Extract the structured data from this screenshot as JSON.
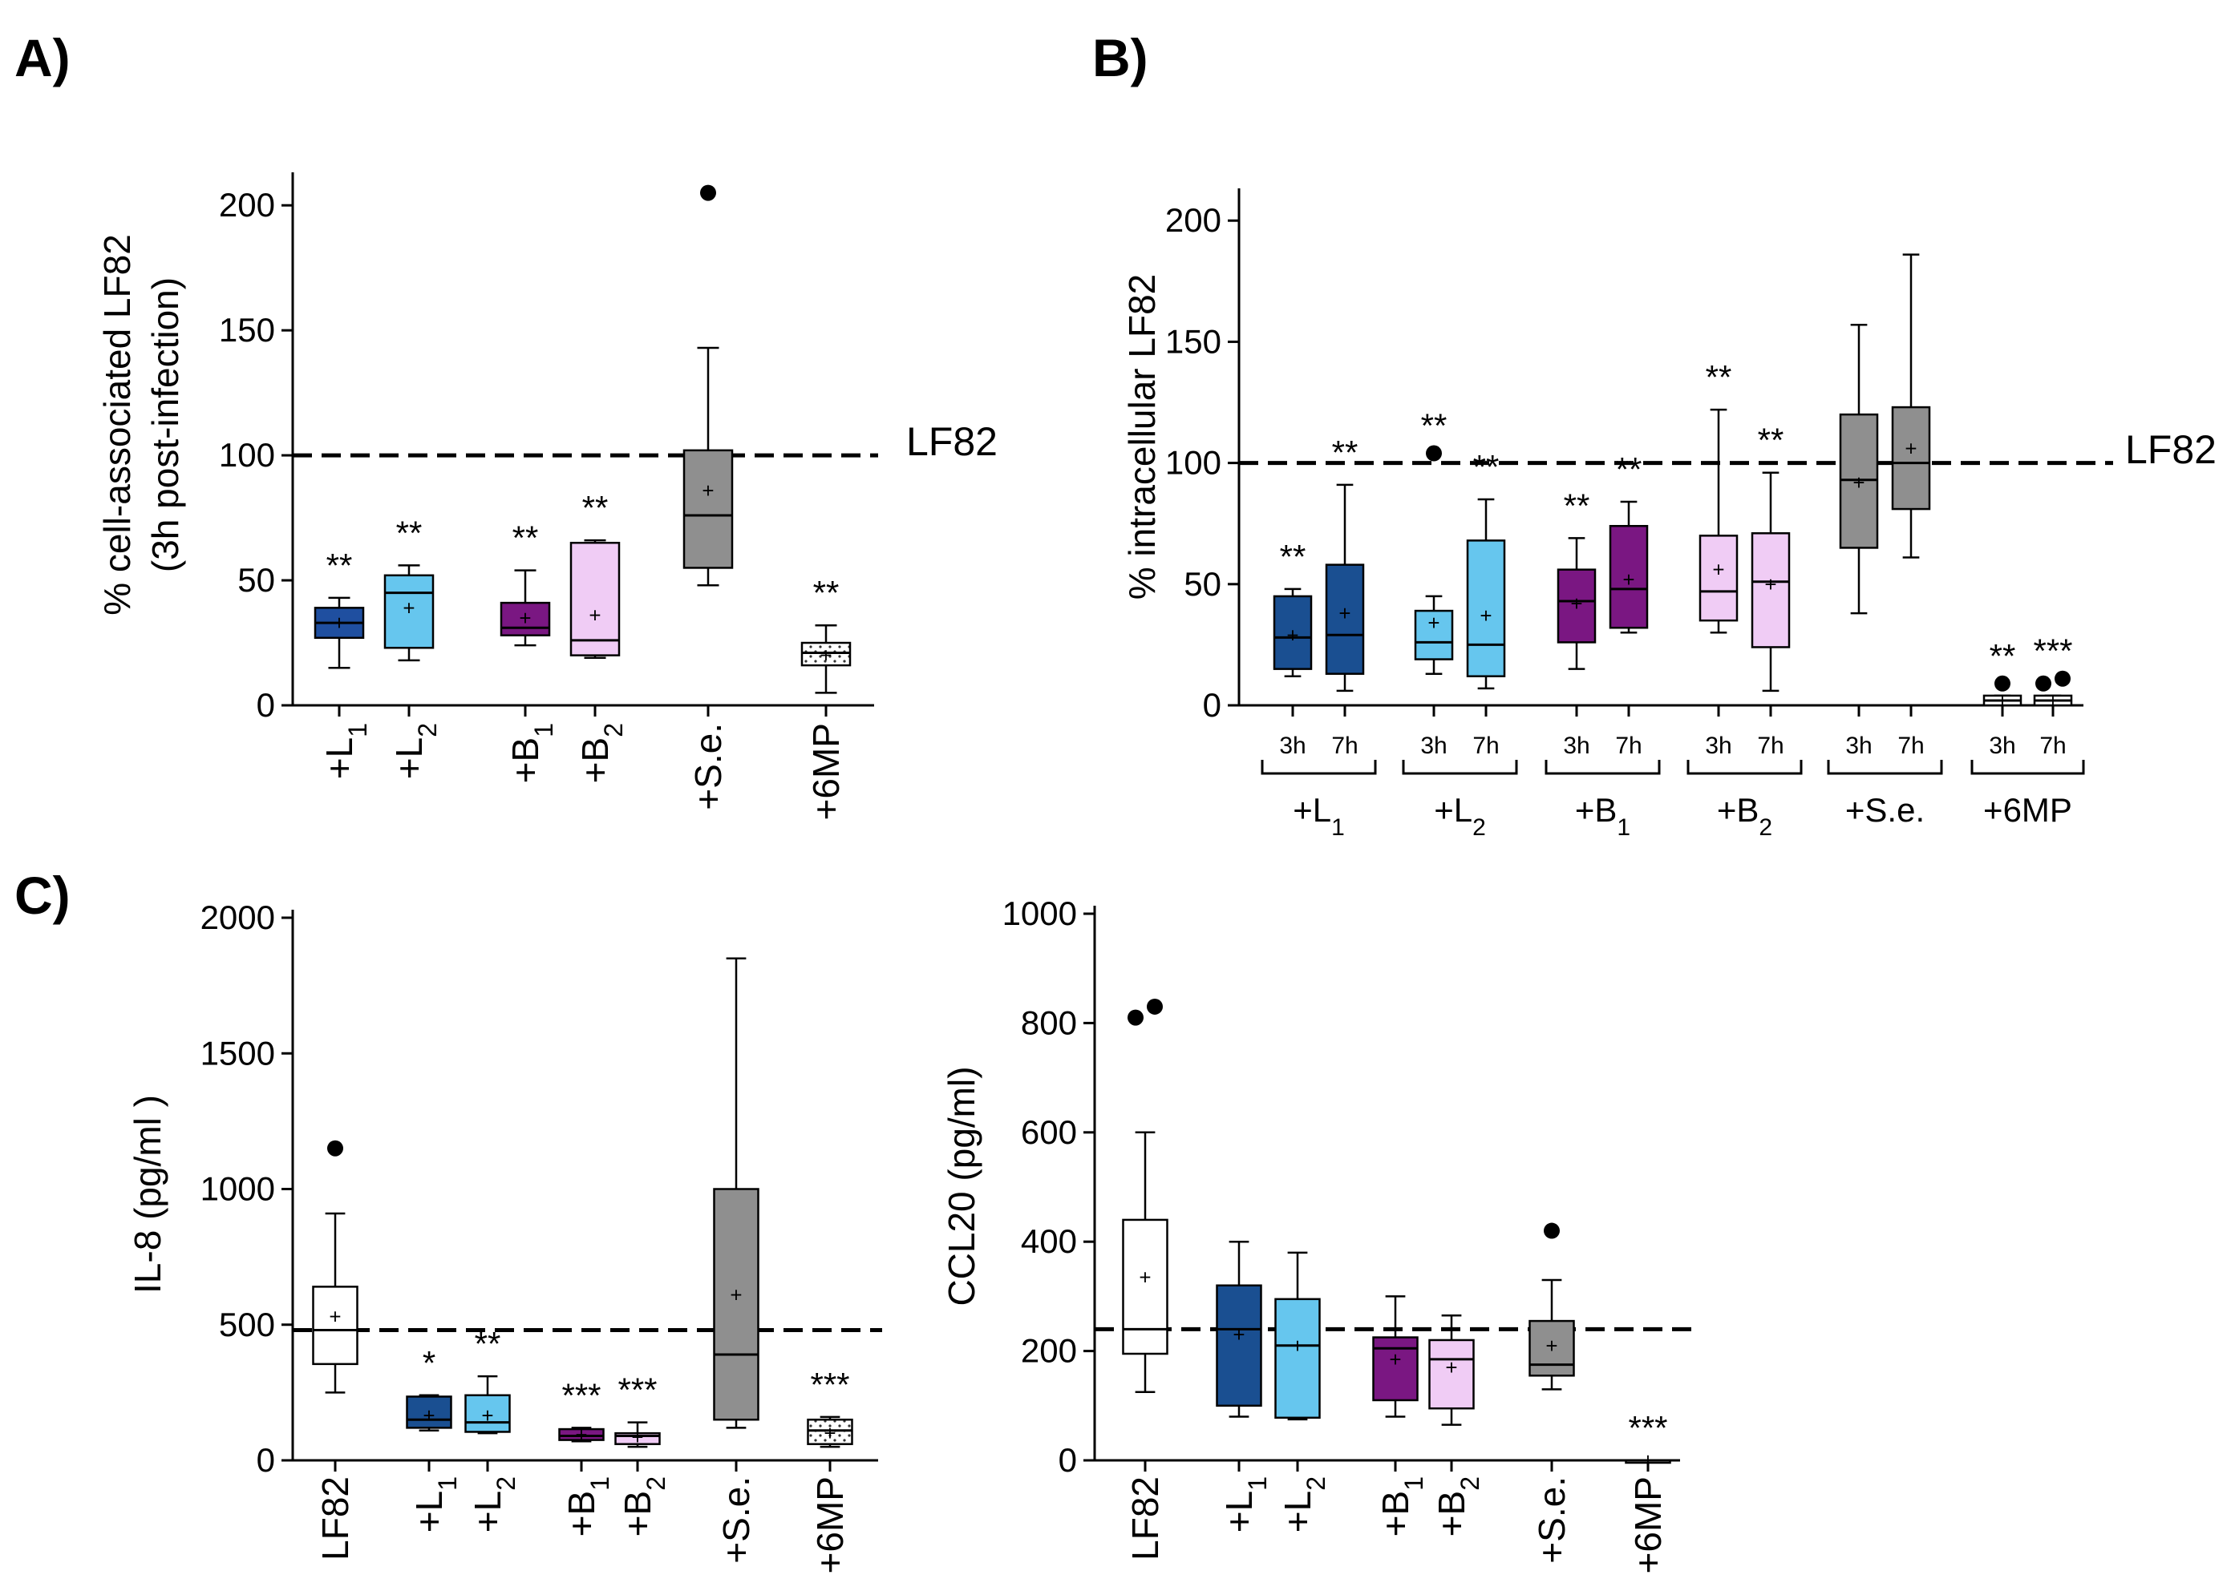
{
  "chart_data": [
    {
      "id": "A",
      "type": "box",
      "panel_label": "A)",
      "ylabel": "% cell-associated LF82",
      "ylabel2": "(3h post-infection)",
      "ylim": [
        0,
        210
      ],
      "yticks": [
        0,
        50,
        100,
        150,
        200
      ],
      "reference_line": {
        "value": 100,
        "label": "LF82"
      },
      "categories": [
        {
          "label": "+L",
          "sub": "1"
        },
        {
          "label": "+L",
          "sub": "2"
        },
        {
          "label": "+B",
          "sub": "1"
        },
        {
          "label": "+B",
          "sub": "2"
        },
        {
          "label": "+S.e.",
          "sub": ""
        },
        {
          "label": "+6MP",
          "sub": ""
        }
      ],
      "boxes": [
        {
          "min": 15,
          "q1": 27,
          "median": 33,
          "q3": 39,
          "max": 43,
          "mean": 33,
          "color": "#1f4fa0",
          "sig": "**"
        },
        {
          "min": 18,
          "q1": 23,
          "median": 45,
          "q3": 52,
          "max": 56,
          "mean": 39,
          "color": "#66c6ee",
          "sig": "**"
        },
        {
          "min": 24,
          "q1": 28,
          "median": 31,
          "q3": 41,
          "max": 54,
          "mean": 35,
          "color": "#7a1782",
          "sig": "**"
        },
        {
          "min": 19,
          "q1": 20,
          "median": 26,
          "q3": 65,
          "max": 66,
          "mean": 36,
          "color": "#f0ccf5",
          "sig": "**"
        },
        {
          "min": 48,
          "q1": 55,
          "median": 76,
          "q3": 102,
          "max": 143,
          "mean": 86,
          "color": "#8f8f8f",
          "sig": "",
          "outliers": [
            205
          ]
        },
        {
          "min": 5,
          "q1": 16,
          "median": 21,
          "q3": 25,
          "max": 32,
          "mean": 20,
          "color": "#ffffff",
          "hatch": true,
          "sig": "**"
        }
      ]
    },
    {
      "id": "B",
      "type": "box",
      "panel_label": "B)",
      "ylabel": "% intracellular LF82",
      "ylim": [
        0,
        210
      ],
      "yticks": [
        0,
        50,
        100,
        150,
        200
      ],
      "reference_line": {
        "value": 100,
        "label": "LF82"
      },
      "timepoints": [
        "3h",
        "7h"
      ],
      "groups": [
        {
          "label": "+L",
          "sub": "1"
        },
        {
          "label": "+L",
          "sub": "2"
        },
        {
          "label": "+B",
          "sub": "1"
        },
        {
          "label": "+B",
          "sub": "2"
        },
        {
          "label": "+S.e.",
          "sub": ""
        },
        {
          "label": "+6MP",
          "sub": ""
        }
      ],
      "boxes": [
        {
          "min": 12,
          "q1": 15,
          "median": 28,
          "q3": 45,
          "max": 48,
          "mean": 29,
          "color": "#1a4f91",
          "sig": "**"
        },
        {
          "min": 6,
          "q1": 13,
          "median": 29,
          "q3": 58,
          "max": 91,
          "mean": 38,
          "color": "#1a4f91",
          "sig": "**"
        },
        {
          "min": 13,
          "q1": 19,
          "median": 26,
          "q3": 39,
          "max": 45,
          "mean": 34,
          "color": "#66c6ee",
          "sig": "**",
          "outliers": [
            104
          ]
        },
        {
          "min": 7,
          "q1": 12,
          "median": 25,
          "q3": 68,
          "max": 85,
          "mean": 37,
          "color": "#66c6ee",
          "sig": "**"
        },
        {
          "min": 15,
          "q1": 26,
          "median": 43,
          "q3": 56,
          "max": 69,
          "mean": 42,
          "color": "#7a1782",
          "sig": "**"
        },
        {
          "min": 30,
          "q1": 32,
          "median": 48,
          "q3": 74,
          "max": 84,
          "mean": 52,
          "color": "#7a1782",
          "sig": "**"
        },
        {
          "min": 30,
          "q1": 35,
          "median": 47,
          "q3": 70,
          "max": 122,
          "mean": 56,
          "color": "#f0ccf5",
          "sig": "**"
        },
        {
          "min": 6,
          "q1": 24,
          "median": 51,
          "q3": 71,
          "max": 96,
          "mean": 50,
          "color": "#f0ccf5",
          "sig": "**"
        },
        {
          "min": 38,
          "q1": 65,
          "median": 93,
          "q3": 120,
          "max": 157,
          "mean": 92,
          "color": "#8f8f8f",
          "sig": ""
        },
        {
          "min": 61,
          "q1": 81,
          "median": 100,
          "q3": 123,
          "max": 186,
          "mean": 106,
          "color": "#8f8f8f",
          "sig": ""
        },
        {
          "min": 0,
          "q1": 0,
          "median": 2,
          "q3": 4,
          "max": 4,
          "mean": 2,
          "color": "#ffffff",
          "sig": "**",
          "outliers": [
            9
          ]
        },
        {
          "min": 0,
          "q1": 0,
          "median": 2,
          "q3": 4,
          "max": 4,
          "mean": 2,
          "color": "#ffffff",
          "sig": "***",
          "outliers": [
            9,
            11
          ]
        }
      ]
    },
    {
      "id": "C1",
      "type": "box",
      "panel_label": "C)",
      "ylabel": "IL-8 (pg/ml )",
      "ylim": [
        0,
        2000
      ],
      "yticks": [
        0,
        500,
        1000,
        1500,
        2000
      ],
      "reference_line": {
        "value": 480,
        "label": ""
      },
      "categories": [
        {
          "label": "LF82",
          "sub": ""
        },
        {
          "label": "+L",
          "sub": "1"
        },
        {
          "label": "+L",
          "sub": "2"
        },
        {
          "label": "+B",
          "sub": "1"
        },
        {
          "label": "+B",
          "sub": "2"
        },
        {
          "label": "+S.e.",
          "sub": ""
        },
        {
          "label": "+6MP",
          "sub": ""
        }
      ],
      "boxes": [
        {
          "min": 250,
          "q1": 355,
          "median": 480,
          "q3": 640,
          "max": 910,
          "mean": 530,
          "color": "#ffffff",
          "sig": "",
          "outliers": [
            1150
          ]
        },
        {
          "min": 110,
          "q1": 120,
          "median": 150,
          "q3": 235,
          "max": 240,
          "mean": 165,
          "color": "#1a4f91",
          "sig": "*"
        },
        {
          "min": 100,
          "q1": 105,
          "median": 140,
          "q3": 240,
          "max": 310,
          "mean": 165,
          "color": "#66c6ee",
          "sig": "**"
        },
        {
          "min": 70,
          "q1": 75,
          "median": 90,
          "q3": 115,
          "max": 120,
          "mean": 95,
          "color": "#7a1782",
          "sig": "***"
        },
        {
          "min": 50,
          "q1": 60,
          "median": 90,
          "q3": 100,
          "max": 140,
          "mean": 85,
          "color": "#f0ccf5",
          "sig": "***"
        },
        {
          "min": 120,
          "q1": 150,
          "median": 390,
          "q3": 1000,
          "max": 1850,
          "mean": 610,
          "color": "#8f8f8f",
          "sig": ""
        },
        {
          "min": 50,
          "q1": 60,
          "median": 110,
          "q3": 150,
          "max": 160,
          "mean": 100,
          "color": "#ffffff",
          "hatch": true,
          "sig": "***"
        }
      ]
    },
    {
      "id": "C2",
      "type": "box",
      "panel_label": "",
      "ylabel": "CCL20 (pg/ml)",
      "ylim": [
        0,
        1000
      ],
      "yticks": [
        0,
        200,
        400,
        600,
        800,
        1000
      ],
      "reference_line": {
        "value": 240,
        "label": ""
      },
      "categories": [
        {
          "label": "LF82",
          "sub": ""
        },
        {
          "label": "+L",
          "sub": "1"
        },
        {
          "label": "+L",
          "sub": "2"
        },
        {
          "label": "+B",
          "sub": "1"
        },
        {
          "label": "+B",
          "sub": "2"
        },
        {
          "label": "+S.e.",
          "sub": ""
        },
        {
          "label": "+6MP",
          "sub": ""
        }
      ],
      "boxes": [
        {
          "min": 125,
          "q1": 195,
          "median": 240,
          "q3": 440,
          "max": 600,
          "mean": 335,
          "color": "#ffffff",
          "sig": "",
          "outliers": [
            810,
            830
          ]
        },
        {
          "min": 80,
          "q1": 100,
          "median": 240,
          "q3": 320,
          "max": 400,
          "mean": 230,
          "color": "#1a4f91",
          "sig": ""
        },
        {
          "min": 75,
          "q1": 78,
          "median": 210,
          "q3": 295,
          "max": 380,
          "mean": 210,
          "color": "#66c6ee",
          "sig": ""
        },
        {
          "min": 80,
          "q1": 110,
          "median": 205,
          "q3": 225,
          "max": 300,
          "mean": 185,
          "color": "#7a1782",
          "sig": ""
        },
        {
          "min": 65,
          "q1": 95,
          "median": 185,
          "q3": 220,
          "max": 265,
          "mean": 170,
          "color": "#f0ccf5",
          "sig": ""
        },
        {
          "min": 130,
          "q1": 155,
          "median": 175,
          "q3": 255,
          "max": 330,
          "mean": 210,
          "color": "#8f8f8f",
          "sig": "",
          "outliers": [
            420
          ]
        },
        {
          "min": 0,
          "q1": 0,
          "median": 0,
          "q3": 0,
          "max": 0,
          "mean": 0,
          "color": "#ffffff",
          "sig": "***"
        }
      ]
    }
  ]
}
